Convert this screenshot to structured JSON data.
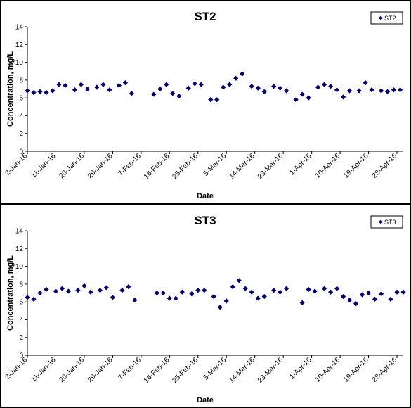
{
  "chart_data": [
    {
      "type": "scatter",
      "title": "ST2",
      "xlabel": "Date",
      "ylabel": "Concentration, mg/L",
      "ylim": [
        0,
        14
      ],
      "yticks": [
        "0",
        "2",
        "4",
        "6",
        "8",
        "10",
        "12",
        "14"
      ],
      "xticks": [
        "2-Jan-16",
        "11-Jan-16",
        "20-Jan-16",
        "29-Jan-16",
        "7-Feb-16",
        "16-Feb-16",
        "25-Feb-16",
        "5-Mar-16",
        "14-Mar-16",
        "23-Mar-16",
        "1-Apr-16",
        "10-Apr-16",
        "19-Apr-16",
        "28-Apr-16"
      ],
      "grid": false,
      "legend_position": "top-right",
      "color": "#000080",
      "marker": "diamond",
      "series": [
        {
          "name": "ST2",
          "x": [
            "2016-01-02",
            "2016-01-04",
            "2016-01-06",
            "2016-01-08",
            "2016-01-10",
            "2016-01-12",
            "2016-01-14",
            "2016-01-17",
            "2016-01-19",
            "2016-01-21",
            "2016-01-24",
            "2016-01-26",
            "2016-01-28",
            "2016-01-31",
            "2016-02-02",
            "2016-02-04",
            "2016-02-11",
            "2016-02-13",
            "2016-02-15",
            "2016-02-17",
            "2016-02-19",
            "2016-02-22",
            "2016-02-24",
            "2016-02-26",
            "2016-02-29",
            "2016-03-02",
            "2016-03-04",
            "2016-03-06",
            "2016-03-08",
            "2016-03-10",
            "2016-03-13",
            "2016-03-15",
            "2016-03-17",
            "2016-03-20",
            "2016-03-22",
            "2016-03-24",
            "2016-03-27",
            "2016-03-29",
            "2016-03-31",
            "2016-04-03",
            "2016-04-05",
            "2016-04-07",
            "2016-04-09",
            "2016-04-11",
            "2016-04-13",
            "2016-04-16",
            "2016-04-18",
            "2016-04-20",
            "2016-04-23",
            "2016-04-25",
            "2016-04-27",
            "2016-04-29"
          ],
          "y": [
            6.8,
            6.6,
            6.7,
            6.6,
            6.8,
            7.5,
            7.4,
            6.9,
            7.5,
            7.0,
            7.2,
            7.5,
            6.9,
            7.4,
            7.7,
            6.5,
            6.4,
            7.0,
            7.5,
            6.5,
            6.2,
            7.1,
            7.6,
            7.5,
            5.8,
            5.8,
            7.2,
            7.5,
            8.2,
            8.7,
            7.3,
            7.1,
            6.7,
            7.3,
            7.1,
            6.8,
            5.8,
            6.4,
            6.0,
            7.2,
            7.5,
            7.3,
            6.9,
            6.1,
            6.8,
            6.8,
            7.7,
            6.9,
            6.8,
            6.7,
            6.9,
            6.9
          ]
        }
      ]
    },
    {
      "type": "scatter",
      "title": "ST3",
      "xlabel": "Date",
      "ylabel": "Concentration, mg/L",
      "ylim": [
        0,
        14
      ],
      "yticks": [
        "0",
        "2",
        "4",
        "6",
        "8",
        "10",
        "12",
        "14"
      ],
      "xticks": [
        "2-Jan-16",
        "11-Jan-16",
        "20-Jan-16",
        "29-Jan-16",
        "7-Feb-16",
        "16-Feb-16",
        "25-Feb-16",
        "5-Mar-16",
        "14-Mar-16",
        "23-Mar-16",
        "1-Apr-16",
        "10-Apr-16",
        "19-Apr-16",
        "28-Apr-16"
      ],
      "grid": false,
      "legend_position": "top-right",
      "color": "#000080",
      "marker": "diamond",
      "series": [
        {
          "name": "ST3",
          "x": [
            "2016-01-02",
            "2016-01-04",
            "2016-01-06",
            "2016-01-08",
            "2016-01-11",
            "2016-01-13",
            "2016-01-15",
            "2016-01-18",
            "2016-01-20",
            "2016-01-22",
            "2016-01-25",
            "2016-01-27",
            "2016-01-29",
            "2016-02-01",
            "2016-02-03",
            "2016-02-05",
            "2016-02-12",
            "2016-02-14",
            "2016-02-16",
            "2016-02-18",
            "2016-02-20",
            "2016-02-23",
            "2016-02-25",
            "2016-02-27",
            "2016-03-01",
            "2016-03-03",
            "2016-03-05",
            "2016-03-07",
            "2016-03-09",
            "2016-03-11",
            "2016-03-13",
            "2016-03-15",
            "2016-03-17",
            "2016-03-20",
            "2016-03-22",
            "2016-03-24",
            "2016-03-29",
            "2016-03-31",
            "2016-04-02",
            "2016-04-05",
            "2016-04-07",
            "2016-04-09",
            "2016-04-11",
            "2016-04-13",
            "2016-04-15",
            "2016-04-17",
            "2016-04-19",
            "2016-04-21",
            "2016-04-23",
            "2016-04-26",
            "2016-04-28",
            "2016-04-30"
          ],
          "y": [
            6.5,
            6.3,
            7.0,
            7.4,
            7.2,
            7.5,
            7.2,
            7.3,
            7.8,
            7.1,
            7.3,
            7.6,
            6.5,
            7.3,
            7.7,
            6.2,
            7.0,
            7.0,
            6.4,
            6.4,
            7.1,
            6.9,
            7.3,
            7.3,
            6.6,
            5.4,
            6.1,
            7.7,
            8.4,
            7.5,
            7.1,
            6.4,
            6.6,
            7.3,
            7.1,
            7.5,
            5.9,
            7.4,
            7.2,
            7.5,
            7.1,
            7.5,
            6.6,
            6.2,
            5.8,
            6.8,
            7.0,
            6.3,
            6.9,
            6.3,
            7.1,
            7.1
          ]
        }
      ]
    }
  ]
}
